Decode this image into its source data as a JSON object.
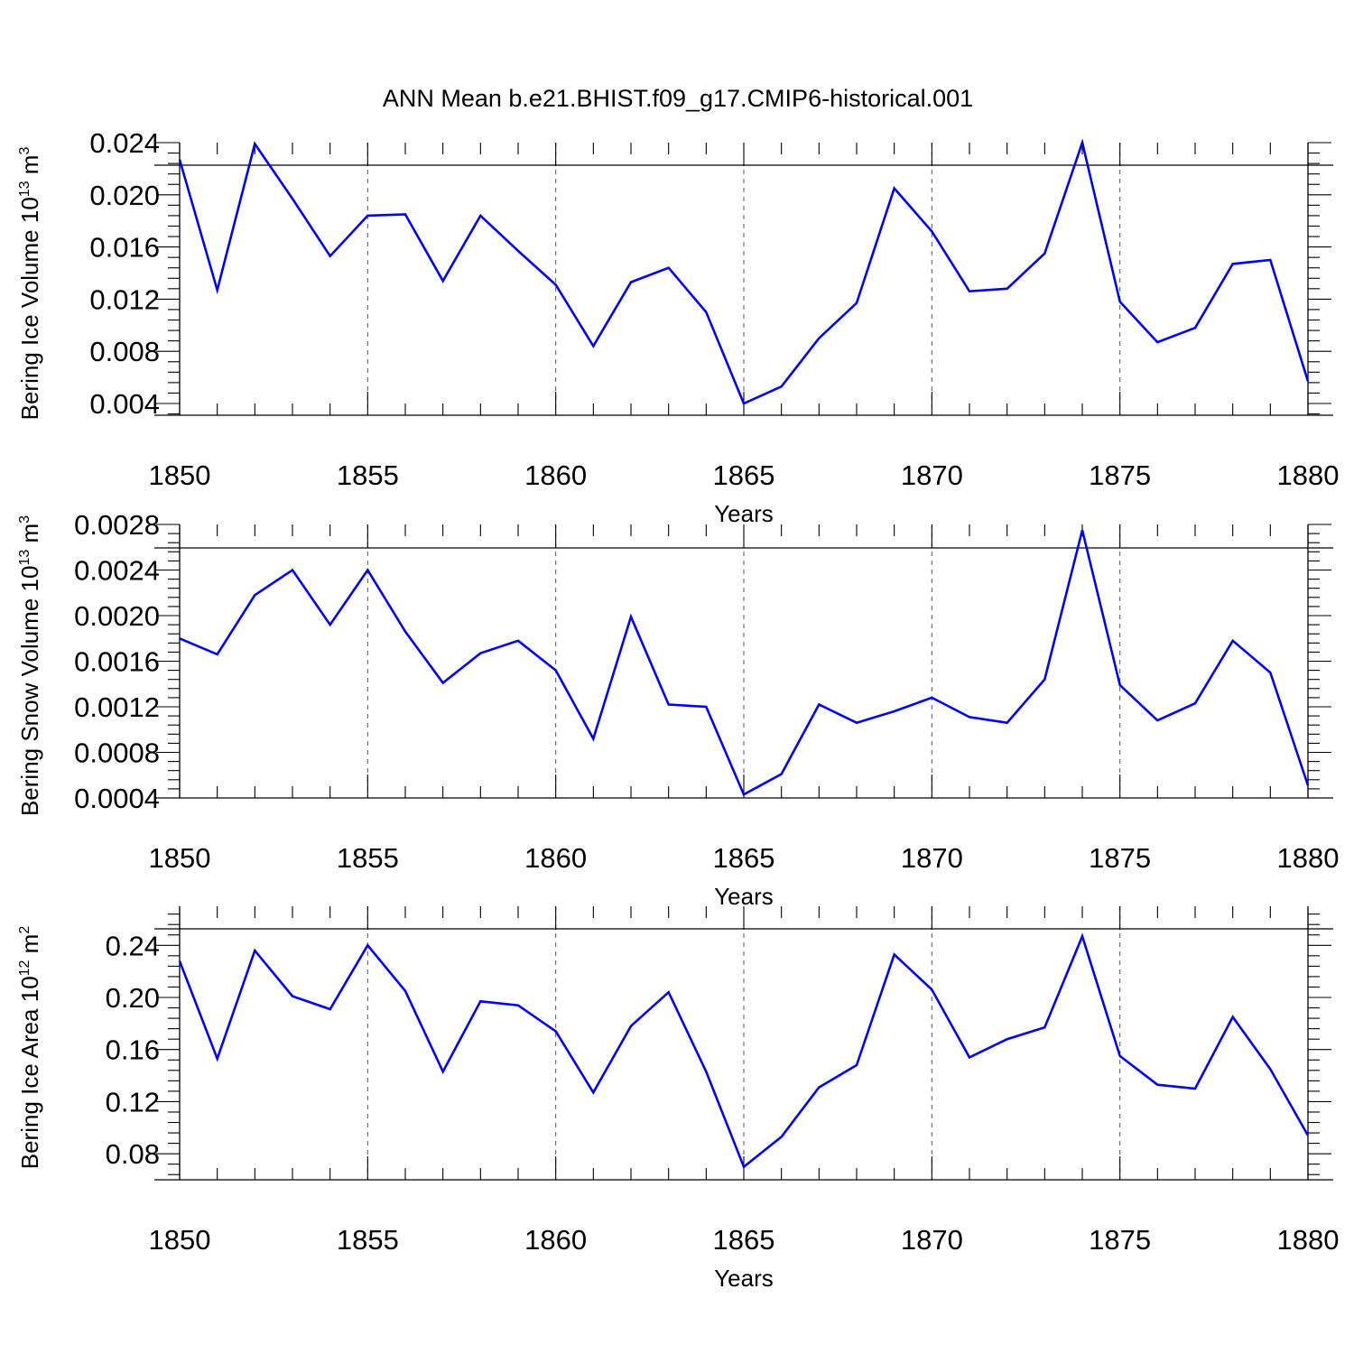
{
  "chart_data": {
    "title": "ANN Mean b.e21.BHIST.f09_g17.CMIP6-historical.001",
    "line_color": "#0000ff",
    "years": [
      1850,
      1851,
      1852,
      1853,
      1854,
      1855,
      1856,
      1857,
      1858,
      1859,
      1860,
      1861,
      1862,
      1863,
      1864,
      1865,
      1866,
      1867,
      1868,
      1869,
      1870,
      1871,
      1872,
      1873,
      1874,
      1875,
      1876,
      1877,
      1878,
      1879,
      1880
    ],
    "panels": [
      {
        "type": "line",
        "ylabel_main": "Bering Ice Volume 10",
        "ylabel_exp": "13",
        "ylabel_unit": " m",
        "ylabel_unit_exp": "3",
        "xlabel": "Years",
        "xlim": [
          1850,
          1880
        ],
        "ylim": [
          0.0031,
          0.024
        ],
        "yticks": [
          0.004,
          0.008,
          0.012,
          0.016,
          0.02,
          0.024
        ],
        "ytick_labels": [
          "0.004",
          "0.008",
          "0.012",
          "0.016",
          "0.020",
          "0.024"
        ],
        "xticks": [
          1850,
          1855,
          1860,
          1865,
          1870,
          1875,
          1880
        ],
        "xtick_labels": [
          "1850",
          "1855",
          "1860",
          "1865",
          "1870",
          "1875",
          "1880"
        ],
        "values": [
          0.0227,
          0.0127,
          0.0239,
          0.0197,
          0.0153,
          0.0184,
          0.0185,
          0.0134,
          0.0184,
          0.0157,
          0.0131,
          0.0084,
          0.0133,
          0.0144,
          0.011,
          0.004,
          0.0053,
          0.009,
          0.0117,
          0.0205,
          0.0172,
          0.0126,
          0.0128,
          0.0155,
          0.024,
          0.0118,
          0.0087,
          0.0098,
          0.0147,
          0.015,
          0.0057
        ]
      },
      {
        "type": "line",
        "ylabel_main": "Bering Snow Volume 10",
        "ylabel_exp": "13",
        "ylabel_unit": " m",
        "ylabel_unit_exp": "3",
        "xlabel": "Years",
        "xlim": [
          1850,
          1880
        ],
        "ylim": [
          0.0004,
          0.0028
        ],
        "yticks": [
          0.0004,
          0.0008,
          0.0012,
          0.0016,
          0.002,
          0.0024,
          0.0028
        ],
        "ytick_labels": [
          "0.0004",
          "0.0008",
          "0.0012",
          "0.0016",
          "0.0020",
          "0.0024",
          "0.0028"
        ],
        "xticks": [
          1850,
          1855,
          1860,
          1865,
          1870,
          1875,
          1880
        ],
        "xtick_labels": [
          "1850",
          "1855",
          "1860",
          "1865",
          "1870",
          "1875",
          "1880"
        ],
        "values": [
          0.0018,
          0.00166,
          0.00218,
          0.0024,
          0.00192,
          0.0024,
          0.00186,
          0.00141,
          0.00167,
          0.00178,
          0.00152,
          0.00092,
          0.00199,
          0.00122,
          0.0012,
          0.00043,
          0.00061,
          0.00122,
          0.00106,
          0.00116,
          0.00128,
          0.00111,
          0.00106,
          0.00144,
          0.00275,
          0.00139,
          0.00108,
          0.00123,
          0.00178,
          0.0015,
          0.00051
        ]
      },
      {
        "type": "line",
        "ylabel_main": "Bering Ice Area 10",
        "ylabel_exp": "12",
        "ylabel_unit": " m",
        "ylabel_unit_exp": "2",
        "xlabel": "Years",
        "xlim": [
          1850,
          1880
        ],
        "ylim": [
          0.06,
          0.27
        ],
        "yticks": [
          0.08,
          0.12,
          0.16,
          0.2,
          0.24
        ],
        "ytick_labels": [
          "0.08",
          "0.12",
          "0.16",
          "0.20",
          "0.24"
        ],
        "xticks": [
          1850,
          1855,
          1860,
          1865,
          1870,
          1875,
          1880
        ],
        "xtick_labels": [
          "1850",
          "1855",
          "1860",
          "1865",
          "1870",
          "1875",
          "1880"
        ],
        "values": [
          0.228,
          0.153,
          0.236,
          0.201,
          0.191,
          0.24,
          0.205,
          0.143,
          0.197,
          0.194,
          0.174,
          0.127,
          0.178,
          0.204,
          0.143,
          0.07,
          0.093,
          0.131,
          0.148,
          0.233,
          0.206,
          0.154,
          0.168,
          0.177,
          0.247,
          0.155,
          0.133,
          0.13,
          0.185,
          0.145,
          0.094
        ]
      }
    ]
  }
}
